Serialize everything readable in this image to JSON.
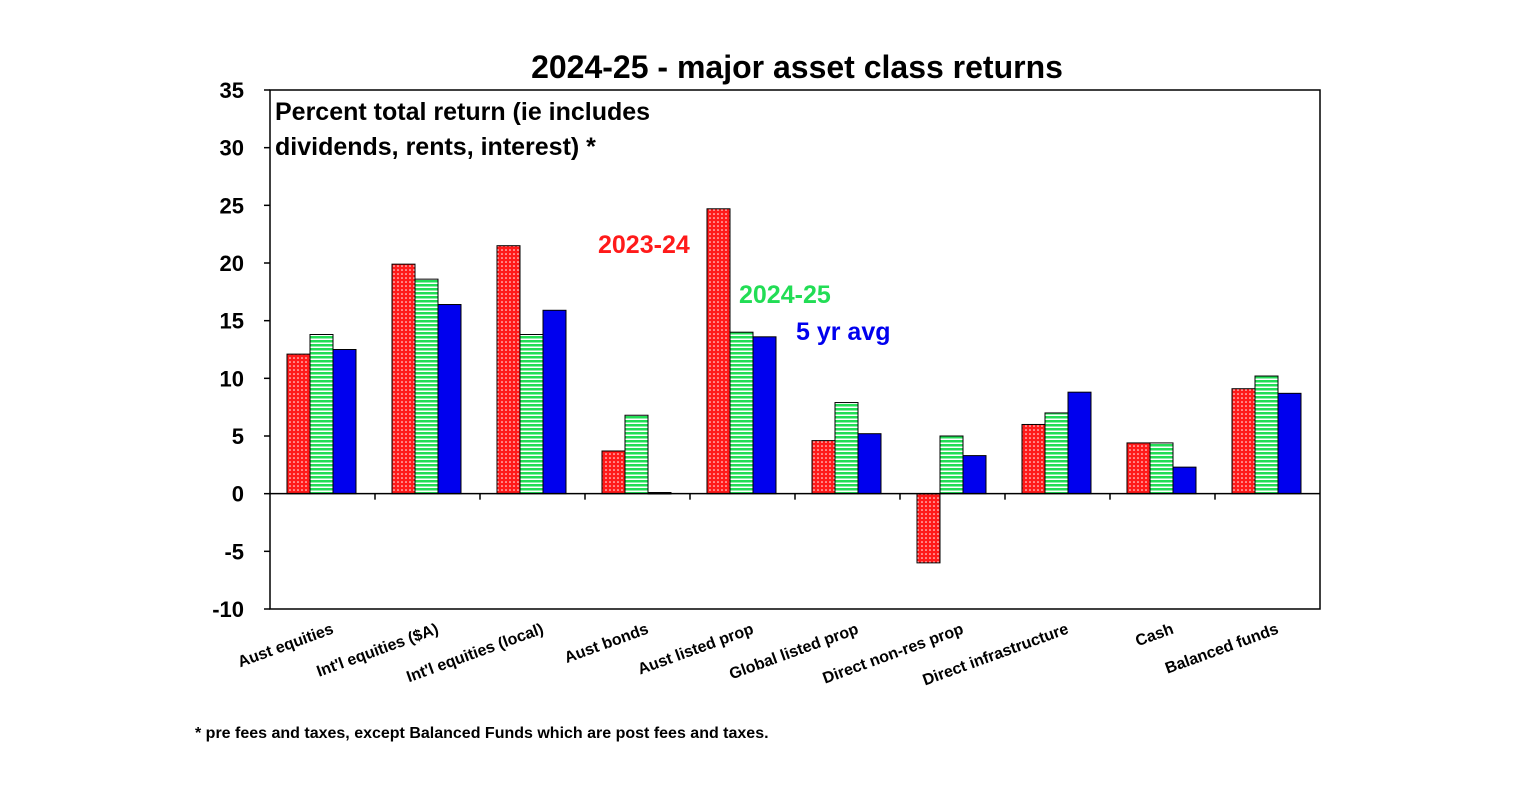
{
  "colors": {
    "series_2023_24": "#ff1a1a",
    "series_2024_25": "#22dd55",
    "series_5yr": "#0000ee",
    "axis": "#000000"
  },
  "chart_data": {
    "type": "bar",
    "title": "2024-25 - major asset class returns",
    "annotation_line1": "Percent total return (ie includes",
    "annotation_line2": "dividends, rents, interest) *",
    "footnote": "* pre fees and taxes, except Balanced Funds which are post fees and taxes.",
    "ylim": [
      -10,
      35
    ],
    "yticks": [
      35,
      30,
      25,
      20,
      15,
      10,
      5,
      0,
      -5,
      -10
    ],
    "grid": false,
    "categories": [
      "Aust equities",
      "Int'l equities ($A)",
      "Int'l equities (local)",
      "Aust bonds",
      "Aust listed prop",
      "Global listed prop",
      "Direct non-res prop",
      "Direct infrastructure",
      "Cash",
      "Balanced funds"
    ],
    "series": [
      {
        "name": "2023-24",
        "pattern": "red-dots",
        "values": [
          12.1,
          19.9,
          21.5,
          3.7,
          24.7,
          4.6,
          -6.0,
          6.0,
          4.4,
          9.1
        ]
      },
      {
        "name": "2024-25",
        "pattern": "green-stripes",
        "values": [
          13.8,
          18.6,
          13.8,
          6.8,
          14.0,
          7.9,
          5.0,
          7.0,
          4.4,
          10.2
        ]
      },
      {
        "name": "5 yr avg",
        "pattern": "blue-solid",
        "values": [
          12.5,
          16.4,
          15.9,
          0.1,
          13.6,
          5.2,
          3.3,
          8.8,
          2.3,
          8.7
        ]
      }
    ]
  }
}
